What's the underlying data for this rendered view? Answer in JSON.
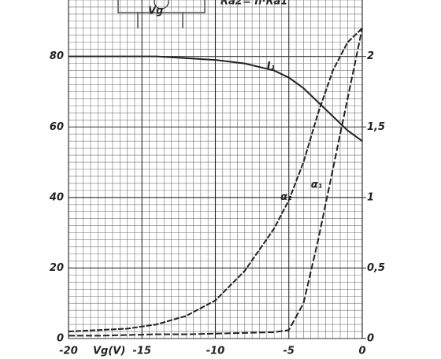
{
  "chart_data": {
    "type": "line",
    "inset_texts": [
      "Vg",
      "Ra2= n·Ra1"
    ],
    "x_label": "Vg(V)",
    "x": [
      -20,
      -18,
      -16,
      -14,
      -12,
      -10,
      -8,
      -6,
      -5,
      -4,
      -3,
      -2,
      -1,
      0
    ],
    "series": [
      {
        "name": "I₁",
        "color": "#222222",
        "values": [
          80,
          80,
          80,
          80,
          79.5,
          79,
          78,
          76,
          74,
          71,
          67,
          63,
          59,
          56
        ]
      },
      {
        "name": "α₂",
        "color": "#222222",
        "axis": "y2",
        "values": [
          0.05,
          0.06,
          0.07,
          0.1,
          0.16,
          0.27,
          0.48,
          0.78,
          0.98,
          1.25,
          1.6,
          1.9,
          2.1,
          2.2
        ]
      },
      {
        "name": "α₁",
        "color": "#222222",
        "axis": "y2",
        "values": [
          0.02,
          0.02,
          0.025,
          0.03,
          0.03,
          0.035,
          0.04,
          0.045,
          0.06,
          0.25,
          0.7,
          1.2,
          1.7,
          2.2
        ]
      }
    ],
    "xlim": [
      -20,
      0
    ],
    "xticks": [
      -20,
      -15,
      -10,
      -5,
      0
    ],
    "ylim": [
      0,
      96
    ],
    "yticks": [
      0,
      20,
      40,
      60,
      80
    ],
    "y2lim": [
      0,
      2.4
    ],
    "y2ticks": [
      0,
      {
        "value": 0.5,
        "label": "0,5"
      },
      1,
      {
        "value": 1.5,
        "label": "1,5"
      },
      2
    ],
    "grid": true
  }
}
